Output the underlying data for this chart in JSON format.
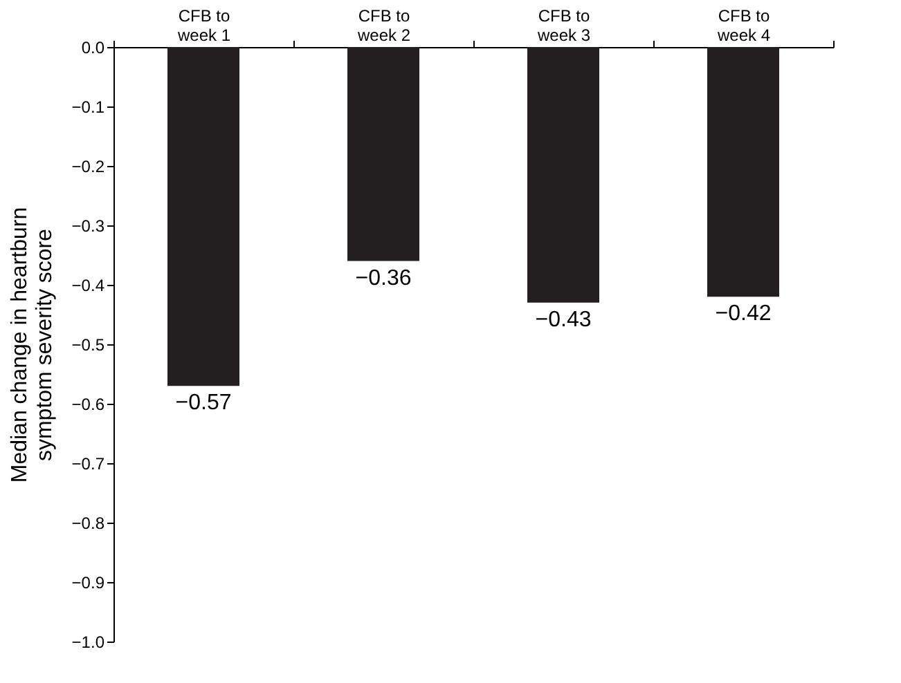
{
  "chart_data": {
    "type": "bar",
    "categories": [
      "CFB to\nweek 1",
      "CFB to\nweek 2",
      "CFB to\nweek 3",
      "CFB to\nweek 4"
    ],
    "values": [
      -0.57,
      -0.36,
      -0.43,
      -0.42
    ],
    "value_labels": [
      "−0.57",
      "−0.36",
      "−0.43",
      "−0.42"
    ],
    "color": "#231f20",
    "ylabel": "Median change in heartburn\nsymptom severity score",
    "ylim": [
      -1.0,
      0.0
    ],
    "yticks": [
      {
        "value": 0.0,
        "label": "0.0"
      },
      {
        "value": -0.1,
        "label": "−0.1"
      },
      {
        "value": -0.2,
        "label": "−0.2"
      },
      {
        "value": -0.3,
        "label": "−0.3"
      },
      {
        "value": -0.4,
        "label": "−0.4"
      },
      {
        "value": -0.5,
        "label": "−0.5"
      },
      {
        "value": -0.6,
        "label": "−0.6"
      },
      {
        "value": -0.7,
        "label": "−0.7"
      },
      {
        "value": -0.8,
        "label": "−0.8"
      },
      {
        "value": -0.9,
        "label": "−0.9"
      },
      {
        "value": -1.0,
        "label": "−1.0"
      }
    ],
    "grid": false
  }
}
